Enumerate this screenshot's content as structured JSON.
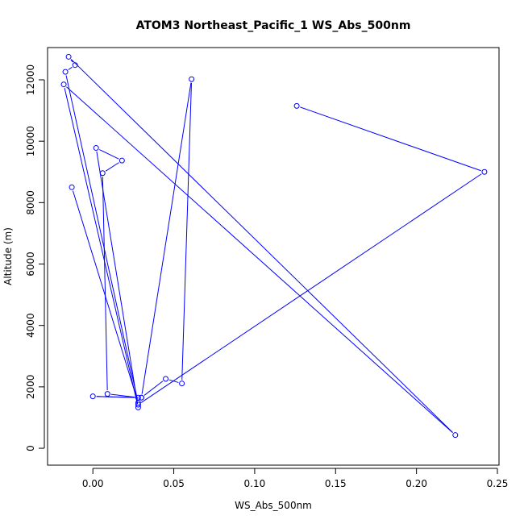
{
  "chart_data": {
    "type": "line",
    "title": "ATOM3 Northeast_Pacific_1 WS_Abs_500nm",
    "xlabel": "WS_Abs_500nm",
    "ylabel": "Altitude (m)",
    "xlim": [
      -0.028,
      0.251
    ],
    "ylim": [
      -550,
      13050
    ],
    "xticks": [
      0.0,
      0.05,
      0.1,
      0.15,
      0.2,
      0.25
    ],
    "xtick_labels": [
      "0.00",
      "0.05",
      "0.10",
      "0.15",
      "0.20",
      "0.25"
    ],
    "yticks": [
      0,
      2000,
      4000,
      6000,
      8000,
      10000,
      12000
    ],
    "ytick_labels": [
      "0",
      "2000",
      "4000",
      "6000",
      "8000",
      "10000",
      "12000"
    ],
    "grid": false,
    "line_color": "#0000ff",
    "marker": "open-circle",
    "series": [
      {
        "x": [
          0.126,
          0.242,
          0.028,
          0.03,
          0.045,
          0.055,
          0.061,
          0.03,
          0.0,
          0.028,
          0.009,
          0.006,
          0.018,
          0.002,
          0.028,
          -0.018,
          0.224,
          -0.015,
          -0.011,
          -0.017,
          0.028,
          -0.013
        ],
        "y": [
          11150,
          9000,
          1420,
          1650,
          2260,
          2110,
          12020,
          1650,
          1690,
          1650,
          1770,
          8960,
          9370,
          9780,
          1330,
          11850,
          430,
          12750,
          12480,
          12260,
          1480,
          8500
        ]
      }
    ]
  }
}
